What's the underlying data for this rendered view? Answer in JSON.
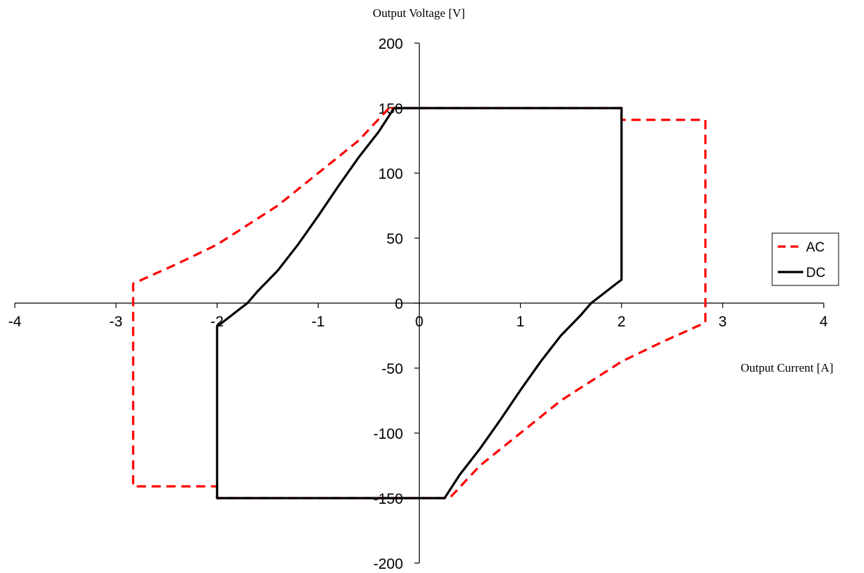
{
  "chart_data": {
    "type": "line",
    "title": "",
    "xlabel": "Output Current [A]",
    "ylabel": "Output Voltage [V]",
    "xlim": [
      -4,
      4
    ],
    "ylim": [
      -200,
      200
    ],
    "x_ticks": [
      "-4",
      "-3",
      "-2",
      "-1",
      "0",
      "1",
      "2",
      "3",
      "4"
    ],
    "y_ticks": [
      "200",
      "150",
      "100",
      "50",
      "0",
      "-50",
      "-100",
      "-150",
      "-200"
    ],
    "grid": false,
    "legend_position": "right",
    "series": [
      {
        "name": "AC",
        "color": "#ff0000",
        "style": "dashed",
        "points": [
          [
            -0.3,
            150
          ],
          [
            -0.6,
            125
          ],
          [
            -1.0,
            100
          ],
          [
            -1.4,
            75
          ],
          [
            -2.0,
            45
          ],
          [
            -2.4,
            30
          ],
          [
            -2.83,
            15
          ],
          [
            -2.83,
            -141
          ],
          [
            -2.0,
            -141
          ],
          [
            -2.0,
            -150
          ],
          [
            0.3,
            -150
          ],
          [
            0.6,
            -125
          ],
          [
            1.0,
            -100
          ],
          [
            1.4,
            -75
          ],
          [
            2.0,
            -45
          ],
          [
            2.4,
            -30
          ],
          [
            2.83,
            -15
          ],
          [
            2.83,
            141
          ],
          [
            2.0,
            141
          ],
          [
            2.0,
            150
          ]
        ]
      },
      {
        "name": "DC",
        "color": "#000000",
        "style": "solid",
        "points": [
          [
            -0.25,
            150
          ],
          [
            2.0,
            150
          ],
          [
            2.0,
            18
          ],
          [
            1.9,
            12
          ],
          [
            1.8,
            6
          ],
          [
            1.7,
            0
          ],
          [
            1.6,
            -9
          ],
          [
            1.4,
            -25
          ],
          [
            1.2,
            -45
          ],
          [
            1.0,
            -67
          ],
          [
            0.8,
            -90
          ],
          [
            0.6,
            -112
          ],
          [
            0.4,
            -132
          ],
          [
            0.25,
            -150
          ],
          [
            -2.0,
            -150
          ],
          [
            -2.0,
            -18
          ],
          [
            -1.9,
            -12
          ],
          [
            -1.8,
            -6
          ],
          [
            -1.7,
            0
          ],
          [
            -1.6,
            9
          ],
          [
            -1.4,
            25
          ],
          [
            -1.2,
            45
          ],
          [
            -1.0,
            67
          ],
          [
            -0.8,
            90
          ],
          [
            -0.6,
            112
          ],
          [
            -0.4,
            132
          ],
          [
            -0.25,
            150
          ]
        ]
      }
    ]
  }
}
